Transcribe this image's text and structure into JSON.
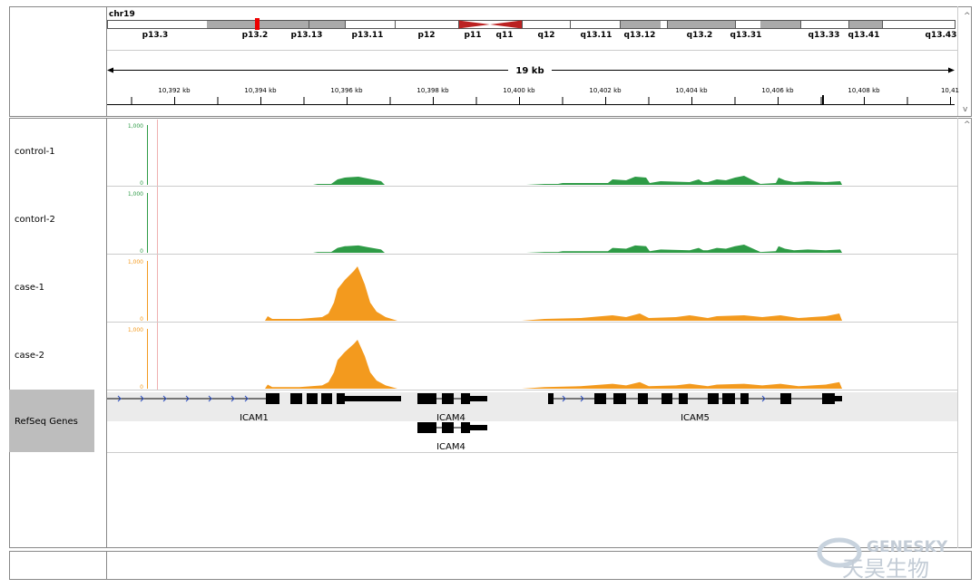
{
  "header": {
    "chromosome": "chr19",
    "bands": [
      "p13.3",
      "p13.2",
      "p13.13",
      "p13.11",
      "p12",
      "p11",
      "q11",
      "q12",
      "q13.11",
      "q13.12",
      "q13.2",
      "q13.31",
      "q13.33",
      "q13.41",
      "q13.43"
    ],
    "span": "19 kb",
    "ruler_ticks": [
      "10,392 kb",
      "10,394 kb",
      "10,396 kb",
      "10,398 kb",
      "10,400 kb",
      "10,402 kb",
      "10,404 kb",
      "10,406 kb",
      "10,408 kb",
      "10,41"
    ]
  },
  "tracks": [
    {
      "name": "control-1",
      "scale_max": "1,000",
      "scale_min": "0"
    },
    {
      "name": "contorl-2",
      "scale_max": "1,000",
      "scale_min": "0"
    },
    {
      "name": "case-1",
      "scale_max": "1,000",
      "scale_min": "0"
    },
    {
      "name": "case-2",
      "scale_max": "1,000",
      "scale_min": "0"
    }
  ],
  "gene_track": {
    "name": "RefSeq Genes",
    "genes": [
      "ICAM1",
      "ICAM4",
      "ICAM5",
      "ICAM4"
    ]
  },
  "watermark": {
    "brand": "GENESKY",
    "brand_cn": "天昊生物"
  }
}
